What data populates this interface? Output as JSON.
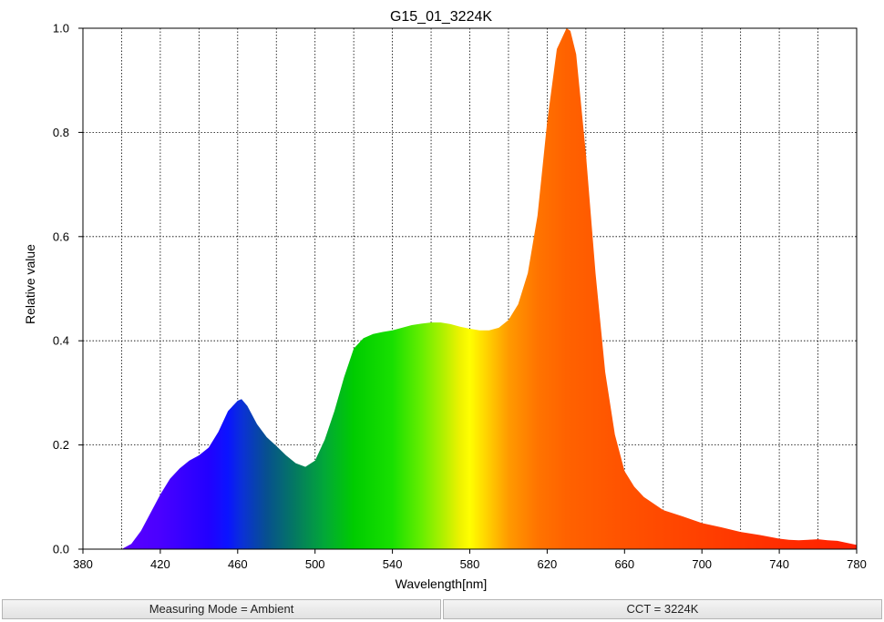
{
  "chart_data": {
    "type": "area",
    "title": "G15_01_3224K",
    "xlabel": "Wavelength[nm]",
    "ylabel": "Relative value",
    "xlim": [
      380,
      780
    ],
    "ylim": [
      0,
      1.0
    ],
    "x_ticks": [
      "380",
      "420",
      "460",
      "500",
      "540",
      "580",
      "620",
      "660",
      "700",
      "740",
      "780"
    ],
    "y_ticks": [
      "0.0",
      "0.2",
      "0.4",
      "0.6",
      "0.8",
      "1.0"
    ],
    "grid": true,
    "grid_style": "dotted",
    "fill": "visible-spectrum color gradient",
    "series": [
      {
        "x": [
          400,
          405,
          410,
          415,
          420,
          425,
          430,
          435,
          440,
          445,
          450,
          455,
          460,
          462,
          465,
          470,
          475,
          480,
          485,
          490,
          495,
          500,
          505,
          510,
          515,
          520,
          525,
          530,
          535,
          540,
          545,
          550,
          555,
          560,
          565,
          570,
          575,
          580,
          585,
          590,
          595,
          600,
          605,
          610,
          615,
          620,
          625,
          630,
          632,
          635,
          640,
          645,
          650,
          655,
          660,
          665,
          670,
          680,
          690,
          700,
          710,
          720,
          730,
          740,
          745,
          750,
          755,
          760,
          765,
          770,
          775,
          780
        ],
        "values": [
          0.0,
          0.01,
          0.035,
          0.07,
          0.105,
          0.135,
          0.155,
          0.17,
          0.18,
          0.195,
          0.225,
          0.265,
          0.285,
          0.288,
          0.275,
          0.24,
          0.215,
          0.198,
          0.18,
          0.165,
          0.158,
          0.17,
          0.21,
          0.265,
          0.33,
          0.385,
          0.405,
          0.413,
          0.417,
          0.42,
          0.425,
          0.43,
          0.433,
          0.435,
          0.435,
          0.432,
          0.427,
          0.423,
          0.42,
          0.42,
          0.425,
          0.44,
          0.47,
          0.53,
          0.64,
          0.82,
          0.96,
          1.0,
          0.995,
          0.95,
          0.76,
          0.53,
          0.34,
          0.22,
          0.15,
          0.12,
          0.1,
          0.075,
          0.063,
          0.05,
          0.042,
          0.033,
          0.027,
          0.02,
          0.018,
          0.017,
          0.018,
          0.019,
          0.017,
          0.016,
          0.012,
          0.008
        ]
      }
    ]
  },
  "footer": {
    "measuring_mode": "Measuring Mode = Ambient",
    "cct": "CCT = 3224K"
  }
}
